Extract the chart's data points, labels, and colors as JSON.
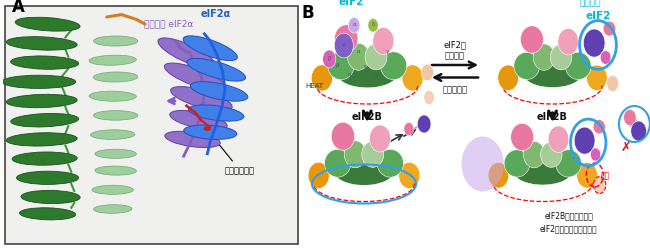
{
  "panel_a_label": "A",
  "panel_b_label": "B",
  "eif2b_label": "eIF2B",
  "eif2_label": "eIF2",
  "heat_label": "HEAT",
  "arrow_text_top": "eIF2の\nリン酸化",
  "arrow_text_bottom": "脱リン酸化",
  "bottom_right_text": "eIF2Bの反対側での\neIF2の結合も阻害される",
  "collision_text": "衝突",
  "phospho_residue_text": "リン酸化残基",
  "eif2a_text": "eIF2α",
  "phospho_eif2a_text": "リン酸化 eIF2α",
  "phospho_label": "リン酸化",
  "colors": {
    "green_dark": "#3a7a3a",
    "green_med": "#5aa85a",
    "green_light": "#80b870",
    "green_pale": "#a8cc98",
    "pink_hot": "#e878a0",
    "pink_med": "#f0a0b8",
    "pink_pale": "#f5c0c8",
    "pink_light2": "#f0b0c0",
    "orange": "#e8960a",
    "orange2": "#f0a820",
    "purple_dark": "#6040b0",
    "purple_med": "#8060c8",
    "purple_light": "#b090d8",
    "lavender": "#c8a8e8",
    "cyan": "#00b8d8",
    "magenta": "#d860b8",
    "peach": "#f0c8a8",
    "peach2": "#f5d0b8",
    "blue_outline": "#30a0e8",
    "yellow_green": "#98c040"
  }
}
